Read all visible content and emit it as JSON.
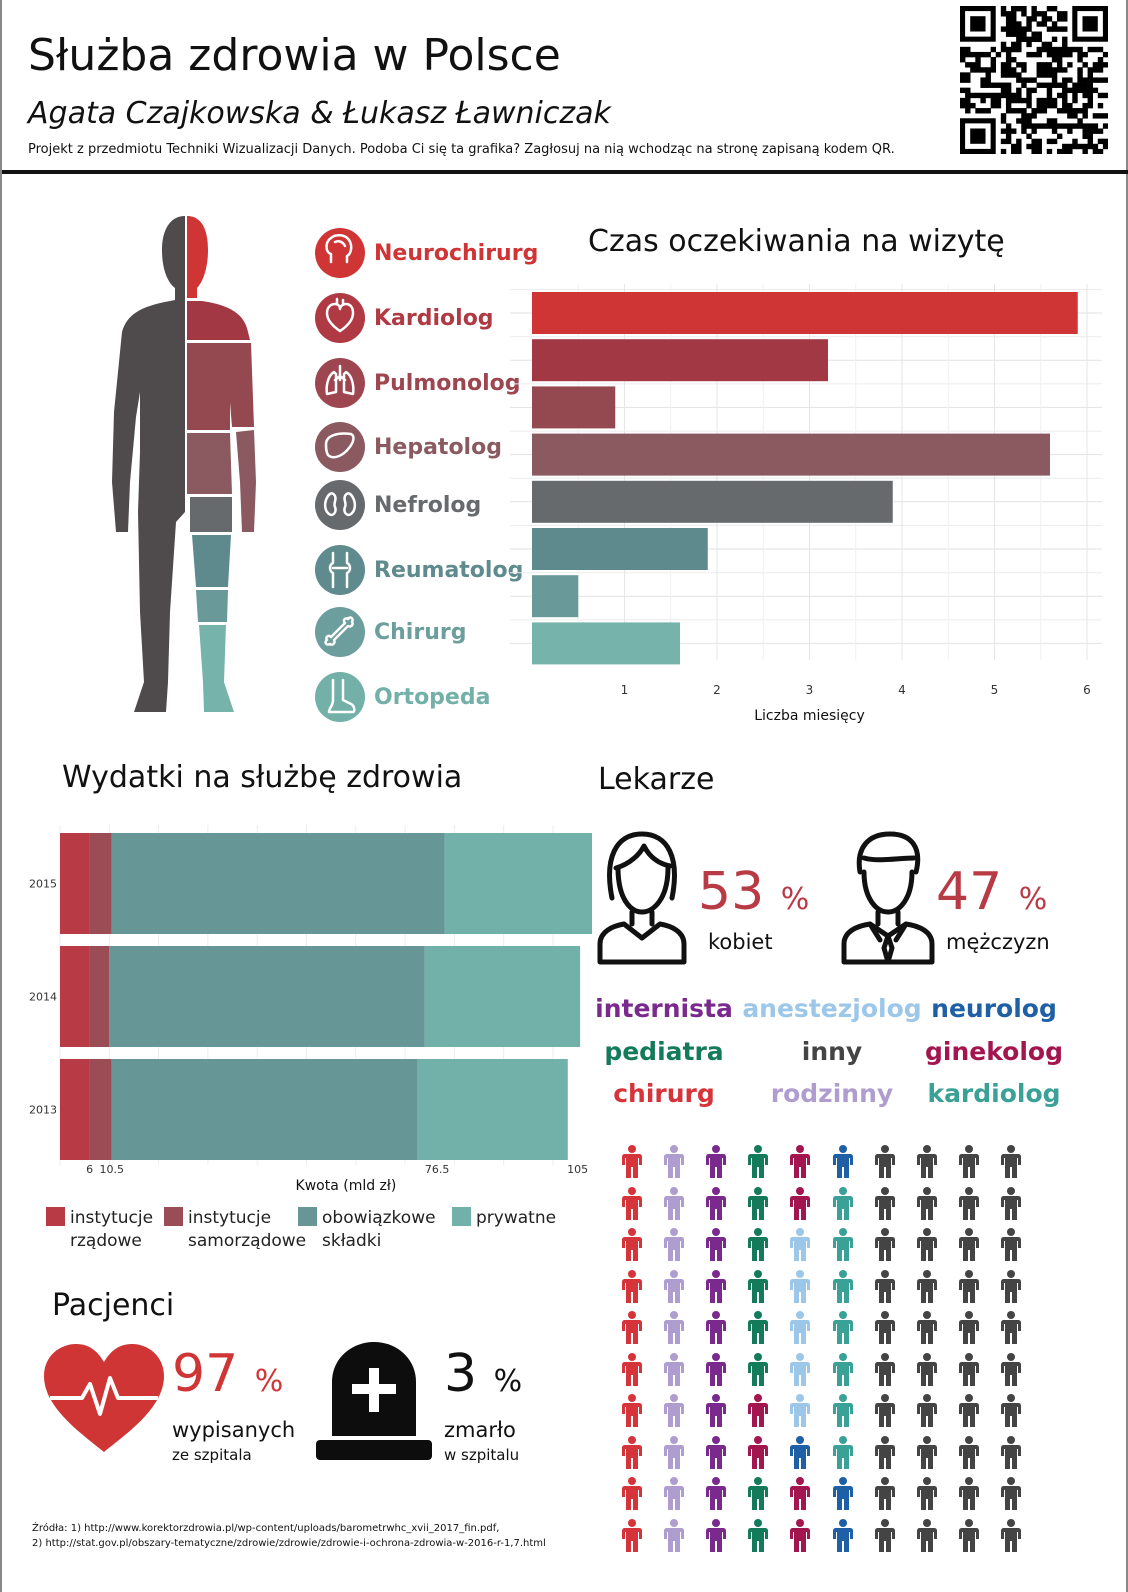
{
  "header": {
    "title": "Służba zdrowia w Polsce",
    "authors": "Agata Czajkowska & Łukasz Ławniczak",
    "subtitle": "Projekt z przedmiotu Techniki Wizualizacji Danych. Podoba Ci się ta grafika? Zagłosuj na nią wchodząc na stronę zapisaną kodem QR."
  },
  "specialists": [
    {
      "label": "Neurochirurg",
      "color": "#d03536",
      "icon": "brain-head-icon"
    },
    {
      "label": "Kardiolog",
      "color": "#b03a44",
      "icon": "heart-icon"
    },
    {
      "label": "Pulmonolog",
      "color": "#9d4650",
      "icon": "lungs-icon"
    },
    {
      "label": "Hepatolog",
      "color": "#8a5a60",
      "icon": "liver-icon"
    },
    {
      "label": "Nefrolog",
      "color": "#676a6d",
      "icon": "kidneys-icon"
    },
    {
      "label": "Reumatolog",
      "color": "#5f8a8e",
      "icon": "joint-icon"
    },
    {
      "label": "Chirurg",
      "color": "#6b9e9c",
      "icon": "bone-icon"
    },
    {
      "label": "Ortopeda",
      "color": "#72b0a8",
      "icon": "foot-icon"
    }
  ],
  "chart_data": [
    {
      "type": "bar",
      "title": "Czas oczekiwania na wizytę",
      "xlabel": "Liczba miesięcy",
      "orientation": "horizontal",
      "x_ticks": [
        "1",
        "2",
        "3",
        "4",
        "5",
        "6"
      ],
      "xlim": [
        0,
        6.2
      ],
      "values": [
        5.9,
        3.2,
        0.9,
        5.6,
        3.9,
        1.9,
        0.5,
        1.6
      ],
      "colors": [
        "#d03536",
        "#a13843",
        "#93494f",
        "#8a5a60",
        "#676a6d",
        "#5e8a8d",
        "#699998",
        "#76b3ab"
      ],
      "grid": true
    },
    {
      "type": "bar",
      "title": "Wydatki na służbę zdrowia",
      "xlabel": "Kwota (mld zł)",
      "orientation": "horizontal",
      "stacked": true,
      "categories": [
        "2015",
        "2014",
        "2013"
      ],
      "x_ticks": [
        "6",
        "10.5",
        "76.5",
        "105"
      ],
      "x_tick_values": [
        6,
        10.5,
        76.5,
        105
      ],
      "xlim": [
        0,
        112
      ],
      "series": [
        {
          "name": "instytucje rządowe",
          "color": "#b83a44",
          "values": [
            6,
            6,
            6
          ]
        },
        {
          "name": "instytucje samorządowe",
          "color": "#9a4d55",
          "values": [
            4.5,
            4,
            4.5
          ]
        },
        {
          "name": "obowiązkowe składki",
          "color": "#679696",
          "values": [
            67.5,
            64,
            62
          ]
        },
        {
          "name": "prywatne",
          "color": "#72b1aa",
          "values": [
            33.5,
            31.5,
            30.5
          ]
        }
      ],
      "legend_labels": [
        [
          "instytucje",
          "rządowe"
        ],
        [
          "instytucje",
          "samorządowe"
        ],
        [
          "obowiązkowe",
          "składki"
        ],
        [
          "prywatne"
        ]
      ],
      "legend_position": "bottom"
    }
  ],
  "doctors": {
    "title": "Lekarze",
    "women_pct": "53",
    "women_label": "kobiet",
    "men_pct": "47",
    "men_label": "mężczyzn",
    "pct_sign": "%",
    "types": [
      {
        "label": "internista",
        "color": "#7a2a8c"
      },
      {
        "label": "anestezjolog",
        "color": "#9cc7e8"
      },
      {
        "label": "neurolog",
        "color": "#1f5fa5"
      },
      {
        "label": "pediatra",
        "color": "#137a5a"
      },
      {
        "label": "inny",
        "color": "#444444"
      },
      {
        "label": "ginekolog",
        "color": "#a3154f"
      },
      {
        "label": "chirurg",
        "color": "#d5343a"
      },
      {
        "label": "rodzinny",
        "color": "#b09dd0"
      },
      {
        "label": "kardiolog",
        "color": "#3aa196"
      }
    ],
    "pictogram_rows": [
      [
        "chirurg",
        "rodzinny",
        "internista",
        "pediatra",
        "ginekolog",
        "neurolog",
        "inny",
        "inny",
        "inny",
        "inny"
      ],
      [
        "chirurg",
        "rodzinny",
        "internista",
        "pediatra",
        "ginekolog",
        "kardiolog",
        "inny",
        "inny",
        "inny",
        "inny"
      ],
      [
        "chirurg",
        "rodzinny",
        "internista",
        "pediatra",
        "anestezjolog",
        "kardiolog",
        "inny",
        "inny",
        "inny",
        "inny"
      ],
      [
        "chirurg",
        "rodzinny",
        "internista",
        "pediatra",
        "anestezjolog",
        "kardiolog",
        "inny",
        "inny",
        "inny",
        "inny"
      ],
      [
        "chirurg",
        "rodzinny",
        "internista",
        "pediatra",
        "anestezjolog",
        "kardiolog",
        "inny",
        "inny",
        "inny",
        "inny"
      ],
      [
        "chirurg",
        "rodzinny",
        "internista",
        "pediatra",
        "anestezjolog",
        "kardiolog",
        "inny",
        "inny",
        "inny",
        "inny"
      ],
      [
        "chirurg",
        "rodzinny",
        "internista",
        "ginekolog",
        "anestezjolog",
        "kardiolog",
        "inny",
        "inny",
        "inny",
        "inny"
      ],
      [
        "chirurg",
        "rodzinny",
        "internista",
        "ginekolog",
        "neurolog",
        "kardiolog",
        "inny",
        "inny",
        "inny",
        "inny"
      ],
      [
        "chirurg",
        "rodzinny",
        "internista",
        "pediatra",
        "ginekolog",
        "neurolog",
        "inny",
        "inny",
        "inny",
        "inny"
      ],
      [
        "chirurg",
        "rodzinny",
        "internista",
        "pediatra",
        "ginekolog",
        "neurolog",
        "inny",
        "inny",
        "inny",
        "inny"
      ]
    ]
  },
  "patients": {
    "title": "Pacjenci",
    "discharged_pct": "97",
    "discharged_label": "wypisanych",
    "discharged_sub": "ze szpitala",
    "died_pct": "3",
    "died_label": "zmarło",
    "died_sub": "w szpitalu",
    "pct_sign": "%"
  },
  "sources": {
    "line1": "Źródła: 1) http://www.korektorzdrowia.pl/wp-content/uploads/barometrwhc_xvii_2017_fin.pdf,",
    "line2": "2) http://stat.gov.pl/obszary-tematyczne/zdrowie/zdrowie/zdrowie-i-ochrona-zdrowia-w-2016-r-1,7.html"
  }
}
